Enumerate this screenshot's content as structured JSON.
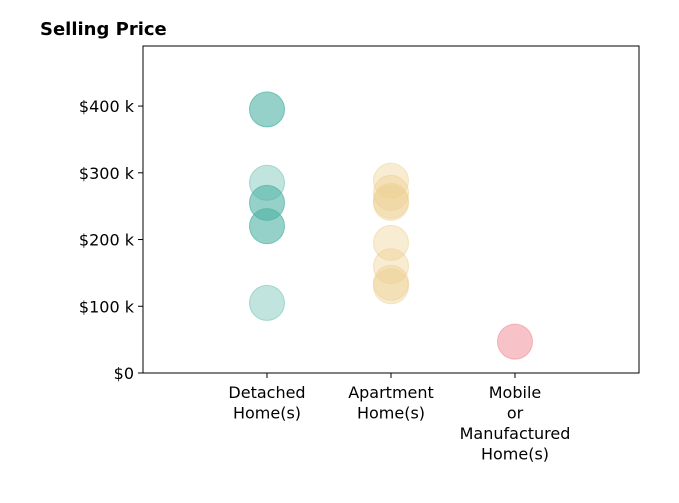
{
  "chart_data": {
    "type": "scatter",
    "title": "Selling Price",
    "xlabel": "",
    "ylabel": "",
    "categories": [
      [
        "Detached",
        "Home(s)"
      ],
      [
        "Apartment",
        "Home(s)"
      ],
      [
        "Mobile",
        "or",
        "Manufactured",
        "Home(s)"
      ]
    ],
    "xlim": [
      -1,
      3
    ],
    "ylim": [
      0,
      490000
    ],
    "yticks": [
      0,
      100000,
      200000,
      300000,
      400000
    ],
    "ytick_labels": [
      "$0",
      "$100 k",
      "$200 k",
      "$300 k",
      "$400 k"
    ],
    "grid": false,
    "series": [
      {
        "category_index": 0,
        "color": "#4fb3a3",
        "points": [
          {
            "value": 395000,
            "opacity": 0.6
          },
          {
            "value": 285000,
            "opacity": 0.35
          },
          {
            "value": 255000,
            "opacity": 0.6
          },
          {
            "value": 220000,
            "opacity": 0.6
          },
          {
            "value": 105000,
            "opacity": 0.35
          }
        ]
      },
      {
        "category_index": 1,
        "color": "#edd08f",
        "points": [
          {
            "value": 288000,
            "opacity": 0.4
          },
          {
            "value": 270000,
            "opacity": 0.4
          },
          {
            "value": 258000,
            "opacity": 0.4
          },
          {
            "value": 255000,
            "opacity": 0.4
          },
          {
            "value": 195000,
            "opacity": 0.4
          },
          {
            "value": 160000,
            "opacity": 0.4
          },
          {
            "value": 135000,
            "opacity": 0.4
          },
          {
            "value": 130000,
            "opacity": 0.4
          }
        ]
      },
      {
        "category_index": 2,
        "color": "#f19aa3",
        "points": [
          {
            "value": 47000,
            "opacity": 0.6
          }
        ]
      }
    ]
  }
}
